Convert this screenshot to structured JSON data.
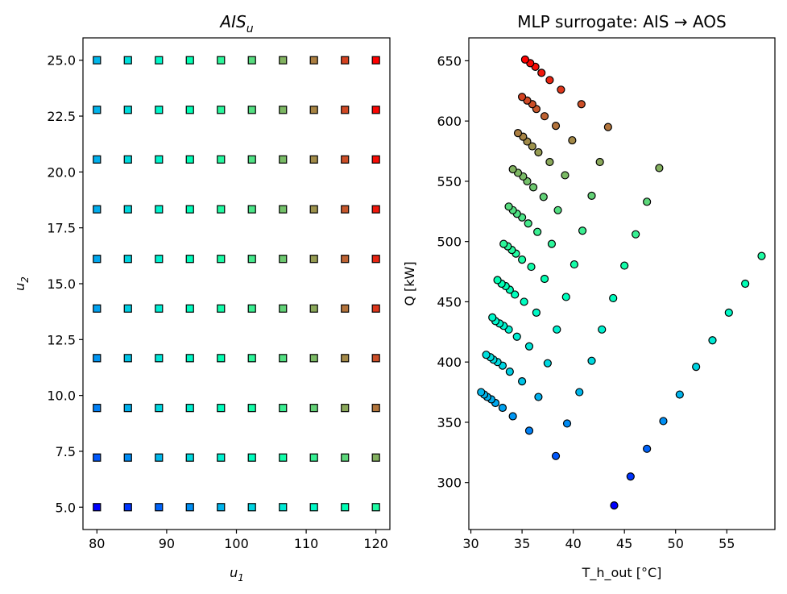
{
  "chart_data": [
    {
      "type": "scatter",
      "marker": "square",
      "title": "AIS_u",
      "title_main": "AIS",
      "title_sub": "u",
      "xlabel_main": "u",
      "xlabel_sub": "1",
      "ylabel_main": "u",
      "ylabel_sub": "2",
      "xlim": [
        78,
        122
      ],
      "ylim": [
        4.0,
        26.0
      ],
      "xticks": [
        80,
        90,
        100,
        110,
        120
      ],
      "xtick_labels": [
        "80",
        "90",
        "100",
        "110",
        "120"
      ],
      "yticks": [
        5.0,
        7.5,
        10.0,
        12.5,
        15.0,
        17.5,
        20.0,
        22.5,
        25.0
      ],
      "ytick_labels": [
        "5.0",
        "7.5",
        "10.0",
        "12.5",
        "15.0",
        "17.5",
        "20.0",
        "22.5",
        "25.0"
      ],
      "x_grid": [
        80,
        84.44,
        88.89,
        93.33,
        97.78,
        102.22,
        106.67,
        111.11,
        115.56,
        120
      ],
      "y_grid": [
        5.0,
        7.22,
        9.44,
        11.67,
        13.89,
        16.11,
        18.33,
        20.56,
        22.78,
        25.0
      ],
      "color_by": "Q"
    },
    {
      "type": "scatter",
      "marker": "circle",
      "title": "MLP surrogate: AIS → AOS",
      "xlabel": "T_h_out [°C]",
      "ylabel": "Q [kW]",
      "xlim": [
        29.8,
        59.7
      ],
      "ylim": [
        261,
        669
      ],
      "xticks": [
        30,
        35,
        40,
        45,
        50,
        55
      ],
      "xtick_labels": [
        "30",
        "35",
        "40",
        "45",
        "50",
        "55"
      ],
      "yticks": [
        300,
        350,
        400,
        450,
        500,
        550,
        600,
        650
      ],
      "ytick_labels": [
        "300",
        "350",
        "400",
        "450",
        "500",
        "550",
        "600",
        "650"
      ],
      "color_range": [
        281,
        651
      ],
      "points_by_u1_column": [
        [
          [
            44.0,
            281
          ],
          [
            38.3,
            322
          ],
          [
            35.7,
            343
          ],
          [
            34.1,
            355
          ],
          [
            33.1,
            362
          ],
          [
            32.4,
            366
          ],
          [
            32.0,
            369
          ],
          [
            31.6,
            371
          ],
          [
            31.3,
            373
          ],
          [
            31.0,
            375
          ]
        ],
        [
          [
            45.6,
            305
          ],
          [
            39.4,
            349
          ],
          [
            36.6,
            371
          ],
          [
            35.0,
            384
          ],
          [
            33.8,
            392
          ],
          [
            33.1,
            397
          ],
          [
            32.6,
            400
          ],
          [
            32.2,
            402
          ],
          [
            31.9,
            404
          ],
          [
            31.5,
            406
          ]
        ],
        [
          [
            47.2,
            328
          ],
          [
            40.6,
            375
          ],
          [
            37.5,
            399
          ],
          [
            35.7,
            413
          ],
          [
            34.5,
            421
          ],
          [
            33.7,
            427
          ],
          [
            33.2,
            430
          ],
          [
            32.8,
            432
          ],
          [
            32.4,
            434
          ],
          [
            32.1,
            437
          ]
        ],
        [
          [
            48.8,
            351
          ],
          [
            41.8,
            401
          ],
          [
            38.4,
            427
          ],
          [
            36.4,
            441
          ],
          [
            35.2,
            450
          ],
          [
            34.3,
            456
          ],
          [
            33.8,
            460
          ],
          [
            33.4,
            463
          ],
          [
            33.0,
            465
          ],
          [
            32.6,
            468
          ]
        ],
        [
          [
            50.4,
            373
          ],
          [
            42.8,
            427
          ],
          [
            39.3,
            454
          ],
          [
            37.2,
            469
          ],
          [
            35.9,
            479
          ],
          [
            35.0,
            485
          ],
          [
            34.4,
            490
          ],
          [
            34.0,
            493
          ],
          [
            33.6,
            496
          ],
          [
            33.2,
            498
          ]
        ],
        [
          [
            52.0,
            396
          ],
          [
            43.9,
            453
          ],
          [
            40.1,
            481
          ],
          [
            37.9,
            498
          ],
          [
            36.5,
            508
          ],
          [
            35.6,
            515
          ],
          [
            35.0,
            520
          ],
          [
            34.5,
            523
          ],
          [
            34.1,
            526
          ],
          [
            33.7,
            529
          ]
        ],
        [
          [
            53.6,
            418
          ],
          [
            45.0,
            480
          ],
          [
            40.9,
            509
          ],
          [
            38.5,
            526
          ],
          [
            37.1,
            537
          ],
          [
            36.1,
            545
          ],
          [
            35.5,
            550
          ],
          [
            35.1,
            554
          ],
          [
            34.6,
            557
          ],
          [
            34.1,
            560
          ]
        ],
        [
          [
            55.2,
            441
          ],
          [
            46.1,
            506
          ],
          [
            41.8,
            538
          ],
          [
            39.2,
            555
          ],
          [
            37.7,
            566
          ],
          [
            36.6,
            574
          ],
          [
            36.0,
            579
          ],
          [
            35.5,
            583
          ],
          [
            35.1,
            587
          ],
          [
            34.6,
            590
          ]
        ],
        [
          [
            56.8,
            465
          ],
          [
            47.2,
            533
          ],
          [
            42.6,
            566
          ],
          [
            39.9,
            584
          ],
          [
            38.3,
            596
          ],
          [
            37.2,
            604
          ],
          [
            36.4,
            610
          ],
          [
            36.0,
            614
          ],
          [
            35.5,
            617
          ],
          [
            35.0,
            620
          ]
        ],
        [
          [
            58.4,
            488
          ],
          [
            48.4,
            561
          ],
          [
            43.4,
            595
          ],
          [
            40.8,
            614
          ],
          [
            38.8,
            626
          ],
          [
            37.7,
            634
          ],
          [
            36.9,
            640
          ],
          [
            36.3,
            645
          ],
          [
            35.8,
            648
          ],
          [
            35.3,
            651
          ]
        ]
      ]
    }
  ]
}
